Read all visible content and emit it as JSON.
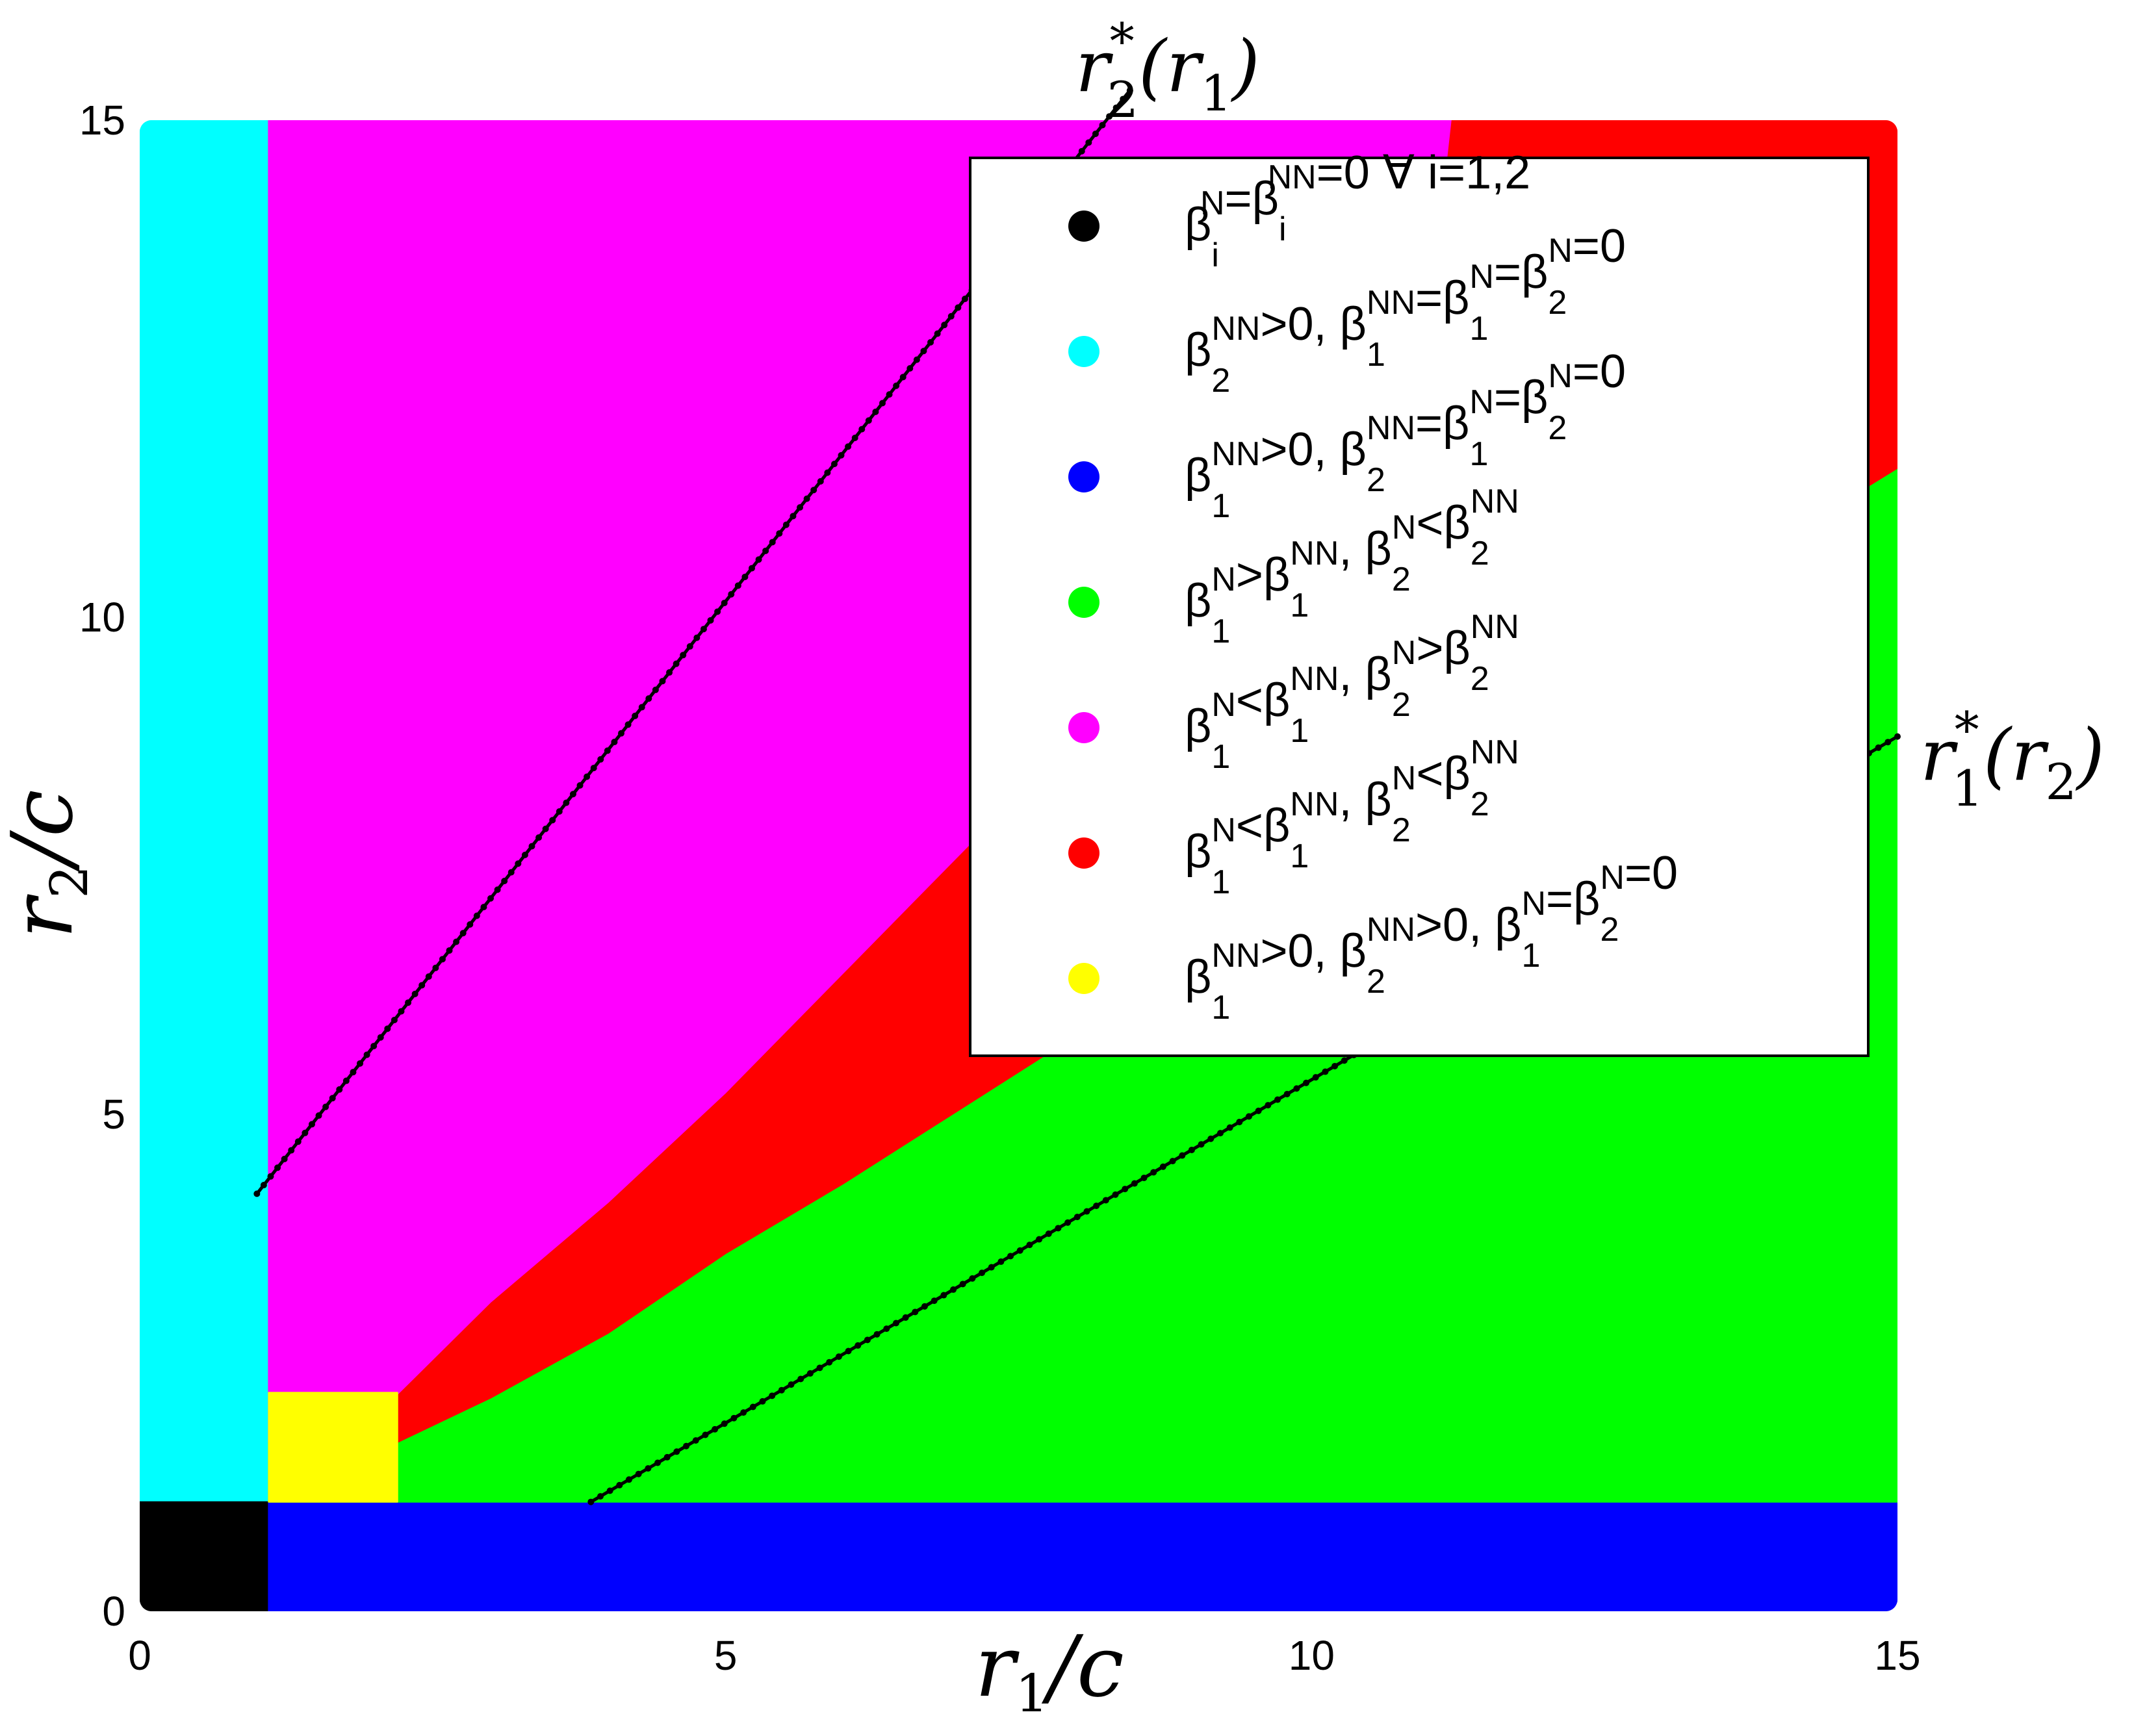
{
  "chart_data": {
    "type": "scatter",
    "xlabel": "r1/c",
    "ylabel": "r2/c",
    "xlim": [
      0,
      15
    ],
    "ylim": [
      0,
      15
    ],
    "x_ticks": [
      "0",
      "5",
      "10",
      "15"
    ],
    "y_ticks": [
      "0",
      "5",
      "10",
      "15"
    ],
    "colors": {
      "black": "#000000",
      "cyan": "#00ffff",
      "blue": "#0000ff",
      "green": "#00ff00",
      "magenta": "#ff00ff",
      "red": "#ff0000",
      "yellow": "#ffff00"
    },
    "regions": [
      {
        "color": "cyan",
        "polygon": [
          [
            0,
            1.1
          ],
          [
            1.1,
            1.1
          ],
          [
            1.1,
            15
          ],
          [
            0,
            15
          ]
        ]
      },
      {
        "color": "black",
        "polygon": [
          [
            0,
            0
          ],
          [
            1.1,
            0
          ],
          [
            1.1,
            1.1
          ],
          [
            0,
            1.1
          ]
        ]
      },
      {
        "color": "blue",
        "polygon": [
          [
            1.1,
            0
          ],
          [
            15,
            0
          ],
          [
            15,
            1.1
          ],
          [
            1.1,
            1.1
          ]
        ]
      },
      {
        "color": "green",
        "polygon": [
          [
            1.1,
            1.1
          ],
          [
            15,
            1.1
          ],
          [
            15,
            11.5
          ],
          [
            11,
            8.6
          ],
          [
            10,
            7.7
          ],
          [
            9,
            6.8
          ],
          [
            8,
            5.8
          ],
          [
            7,
            5.05
          ],
          [
            6,
            4.3
          ],
          [
            5,
            3.6
          ],
          [
            4,
            2.8
          ],
          [
            3,
            2.15
          ],
          [
            2.2,
            1.7
          ],
          [
            1.1,
            1.7
          ]
        ]
      },
      {
        "color": "magenta",
        "polygon": [
          [
            1.1,
            1.7
          ],
          [
            1.8,
            1.7
          ],
          [
            3,
            3.1
          ],
          [
            4,
            4.1
          ],
          [
            5,
            5.2
          ],
          [
            6,
            6.4
          ],
          [
            7,
            7.6
          ],
          [
            8,
            8.8
          ],
          [
            9,
            10.2
          ],
          [
            10,
            11.4
          ],
          [
            11,
            12.9
          ],
          [
            11.2,
            15
          ],
          [
            1.1,
            15
          ]
        ]
      },
      {
        "color": "red",
        "polygon": [
          [
            1.8,
            1.7
          ],
          [
            2.2,
            1.7
          ],
          [
            3,
            2.15
          ],
          [
            4,
            2.8
          ],
          [
            5,
            3.6
          ],
          [
            6,
            4.3
          ],
          [
            7,
            5.05
          ],
          [
            8,
            5.8
          ],
          [
            9,
            6.8
          ],
          [
            10,
            7.7
          ],
          [
            11,
            8.6
          ],
          [
            15,
            11.5
          ],
          [
            15,
            15
          ],
          [
            11.2,
            15
          ],
          [
            11,
            12.9
          ],
          [
            10,
            11.4
          ],
          [
            9,
            10.2
          ],
          [
            8,
            8.8
          ],
          [
            7,
            7.6
          ],
          [
            6,
            6.4
          ],
          [
            5,
            5.2
          ],
          [
            4,
            4.1
          ],
          [
            3,
            3.1
          ]
        ]
      },
      {
        "color": "yellow",
        "polygon": [
          [
            1.1,
            1.1
          ],
          [
            2.2,
            1.1
          ],
          [
            2.2,
            2.2
          ],
          [
            1.1,
            2.2
          ]
        ]
      }
    ],
    "curves": [
      {
        "label_base": "r",
        "label_sub": "2",
        "label_sup": "*",
        "label_arg_base": "r",
        "label_arg_sub": "1",
        "points": [
          [
            1.0,
            4.2
          ],
          [
            8.45,
            15.3
          ]
        ]
      },
      {
        "label_base": "r",
        "label_sub": "1",
        "label_sup": "*",
        "label_arg_base": "r",
        "label_arg_sub": "2",
        "points": [
          [
            3.85,
            1.1
          ],
          [
            15,
            8.8
          ]
        ]
      }
    ],
    "legend": {
      "placement": "top-right",
      "entries": [
        {
          "color": "black",
          "parts": [
            [
              "β",
              "i",
              "N"
            ],
            [
              "=β",
              "i",
              "NN"
            ],
            [
              "=0 ∀ i=1,2",
              "",
              ""
            ]
          ]
        },
        {
          "color": "cyan",
          "parts": [
            [
              "β",
              "2",
              "NN"
            ],
            [
              ">0, β",
              "1",
              "NN"
            ],
            [
              "=β",
              "1",
              "N"
            ],
            [
              "=β",
              "2",
              "N"
            ],
            [
              "=0",
              "",
              ""
            ]
          ]
        },
        {
          "color": "blue",
          "parts": [
            [
              "β",
              "1",
              "NN"
            ],
            [
              ">0, β",
              "2",
              "NN"
            ],
            [
              "=β",
              "1",
              "N"
            ],
            [
              "=β",
              "2",
              "N"
            ],
            [
              "=0",
              "",
              ""
            ]
          ]
        },
        {
          "color": "green",
          "parts": [
            [
              " β",
              "1",
              "N"
            ],
            [
              ">β",
              "1",
              "NN"
            ],
            [
              ", β",
              "2",
              "N"
            ],
            [
              "<β",
              "2",
              "NN"
            ]
          ]
        },
        {
          "color": "magenta",
          "parts": [
            [
              "β",
              "1",
              "N"
            ],
            [
              "<β",
              "1",
              "NN"
            ],
            [
              ", β",
              "2",
              "N"
            ],
            [
              ">β",
              "2",
              "NN"
            ]
          ]
        },
        {
          "color": "red",
          "parts": [
            [
              "β",
              "1",
              "N"
            ],
            [
              "<β",
              "1",
              "NN"
            ],
            [
              ", β",
              "2",
              "N"
            ],
            [
              "<β",
              "2",
              "NN"
            ]
          ]
        },
        {
          "color": "yellow",
          "parts": [
            [
              "β",
              "1",
              "NN"
            ],
            [
              ">0, β",
              "2",
              "NN"
            ],
            [
              ">0, β",
              "1",
              "N"
            ],
            [
              "=β",
              "2",
              "N"
            ],
            [
              "=0",
              "",
              ""
            ]
          ]
        }
      ]
    }
  }
}
